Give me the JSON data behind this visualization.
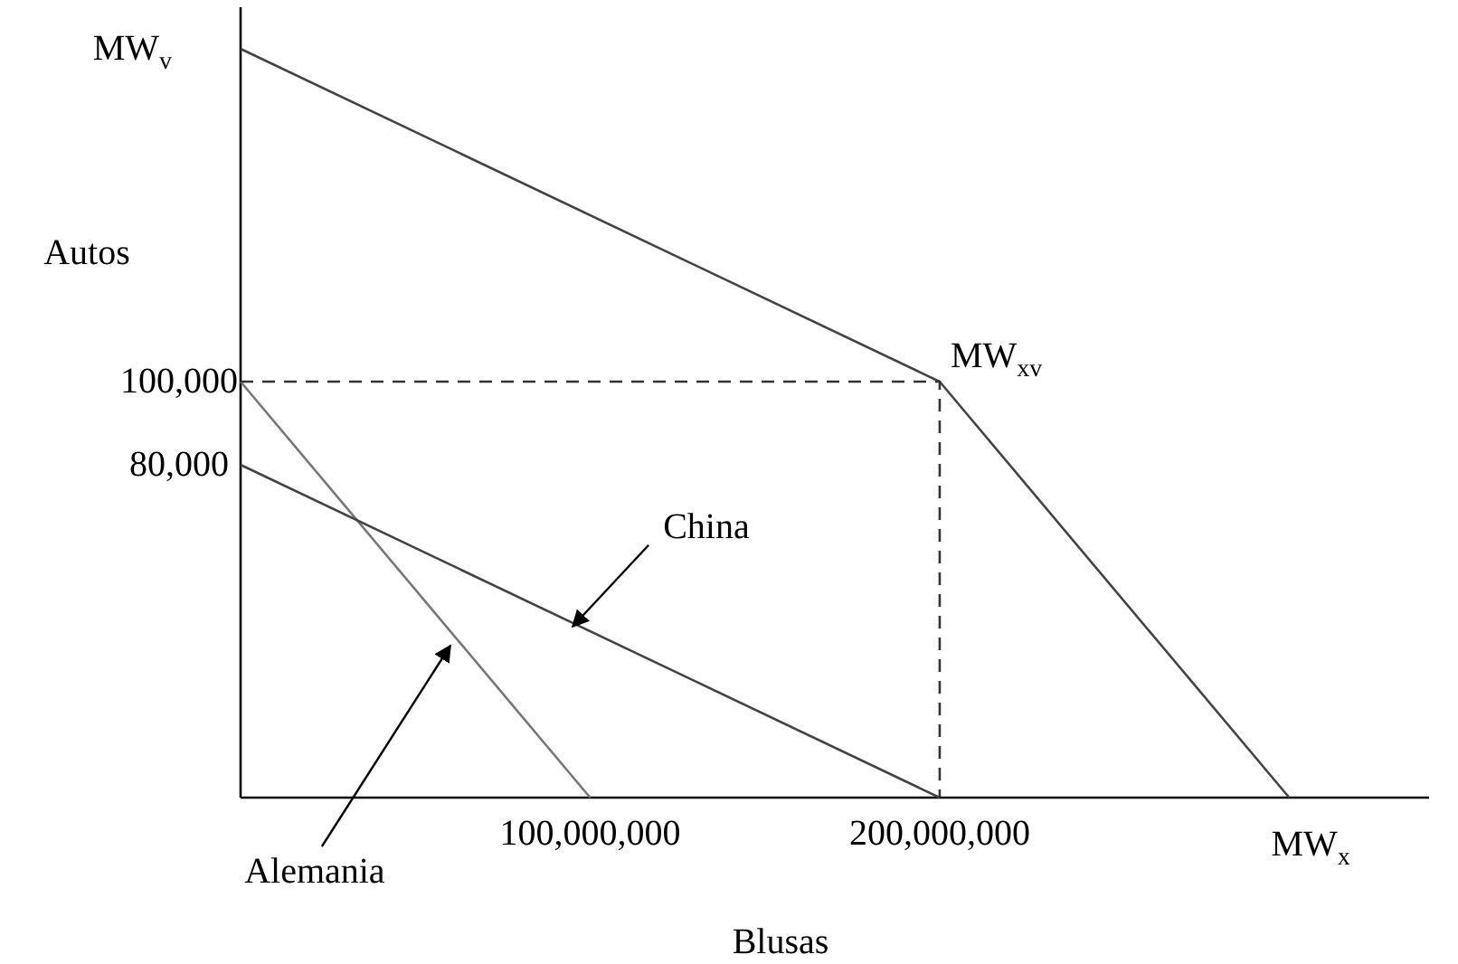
{
  "chart_data": {
    "type": "line",
    "xlabel": "Blusas",
    "ylabel": "Autos",
    "xlim": [
      0,
      340000000
    ],
    "ylim": [
      0,
      190000
    ],
    "xticks": [
      {
        "value": 100000000,
        "label": "100,000,000"
      },
      {
        "value": 200000000,
        "label": "200,000,000"
      }
    ],
    "yticks": [
      {
        "value": 80000,
        "label": "80,000"
      },
      {
        "value": 100000,
        "label": "100,000"
      }
    ],
    "grid": false,
    "series": [
      {
        "color": "#444444",
        "x": [
          0,
          200000000,
          300000000
        ],
        "values": [
          180000,
          100000,
          0
        ]
      },
      {
        "name": "Alemania",
        "color": "#777777",
        "x": [
          0,
          100000000
        ],
        "values": [
          100000,
          0
        ]
      },
      {
        "name": "China",
        "color": "#444444",
        "x": [
          0,
          200000000
        ],
        "values": [
          80000,
          0
        ]
      },
      {
        "color": "#333333",
        "line_style": "dashed",
        "x": [
          0,
          200000000,
          200000000
        ],
        "values": [
          100000,
          100000,
          0
        ]
      }
    ],
    "annotations": [
      {
        "text": "MW$_{v}$",
        "x": 0,
        "y": 180000
      },
      {
        "text": "MW$_{xv}$",
        "x": 200000000,
        "y": 100000
      },
      {
        "text": "MW$_{x}$",
        "x": 300000000,
        "y": 0
      }
    ]
  }
}
